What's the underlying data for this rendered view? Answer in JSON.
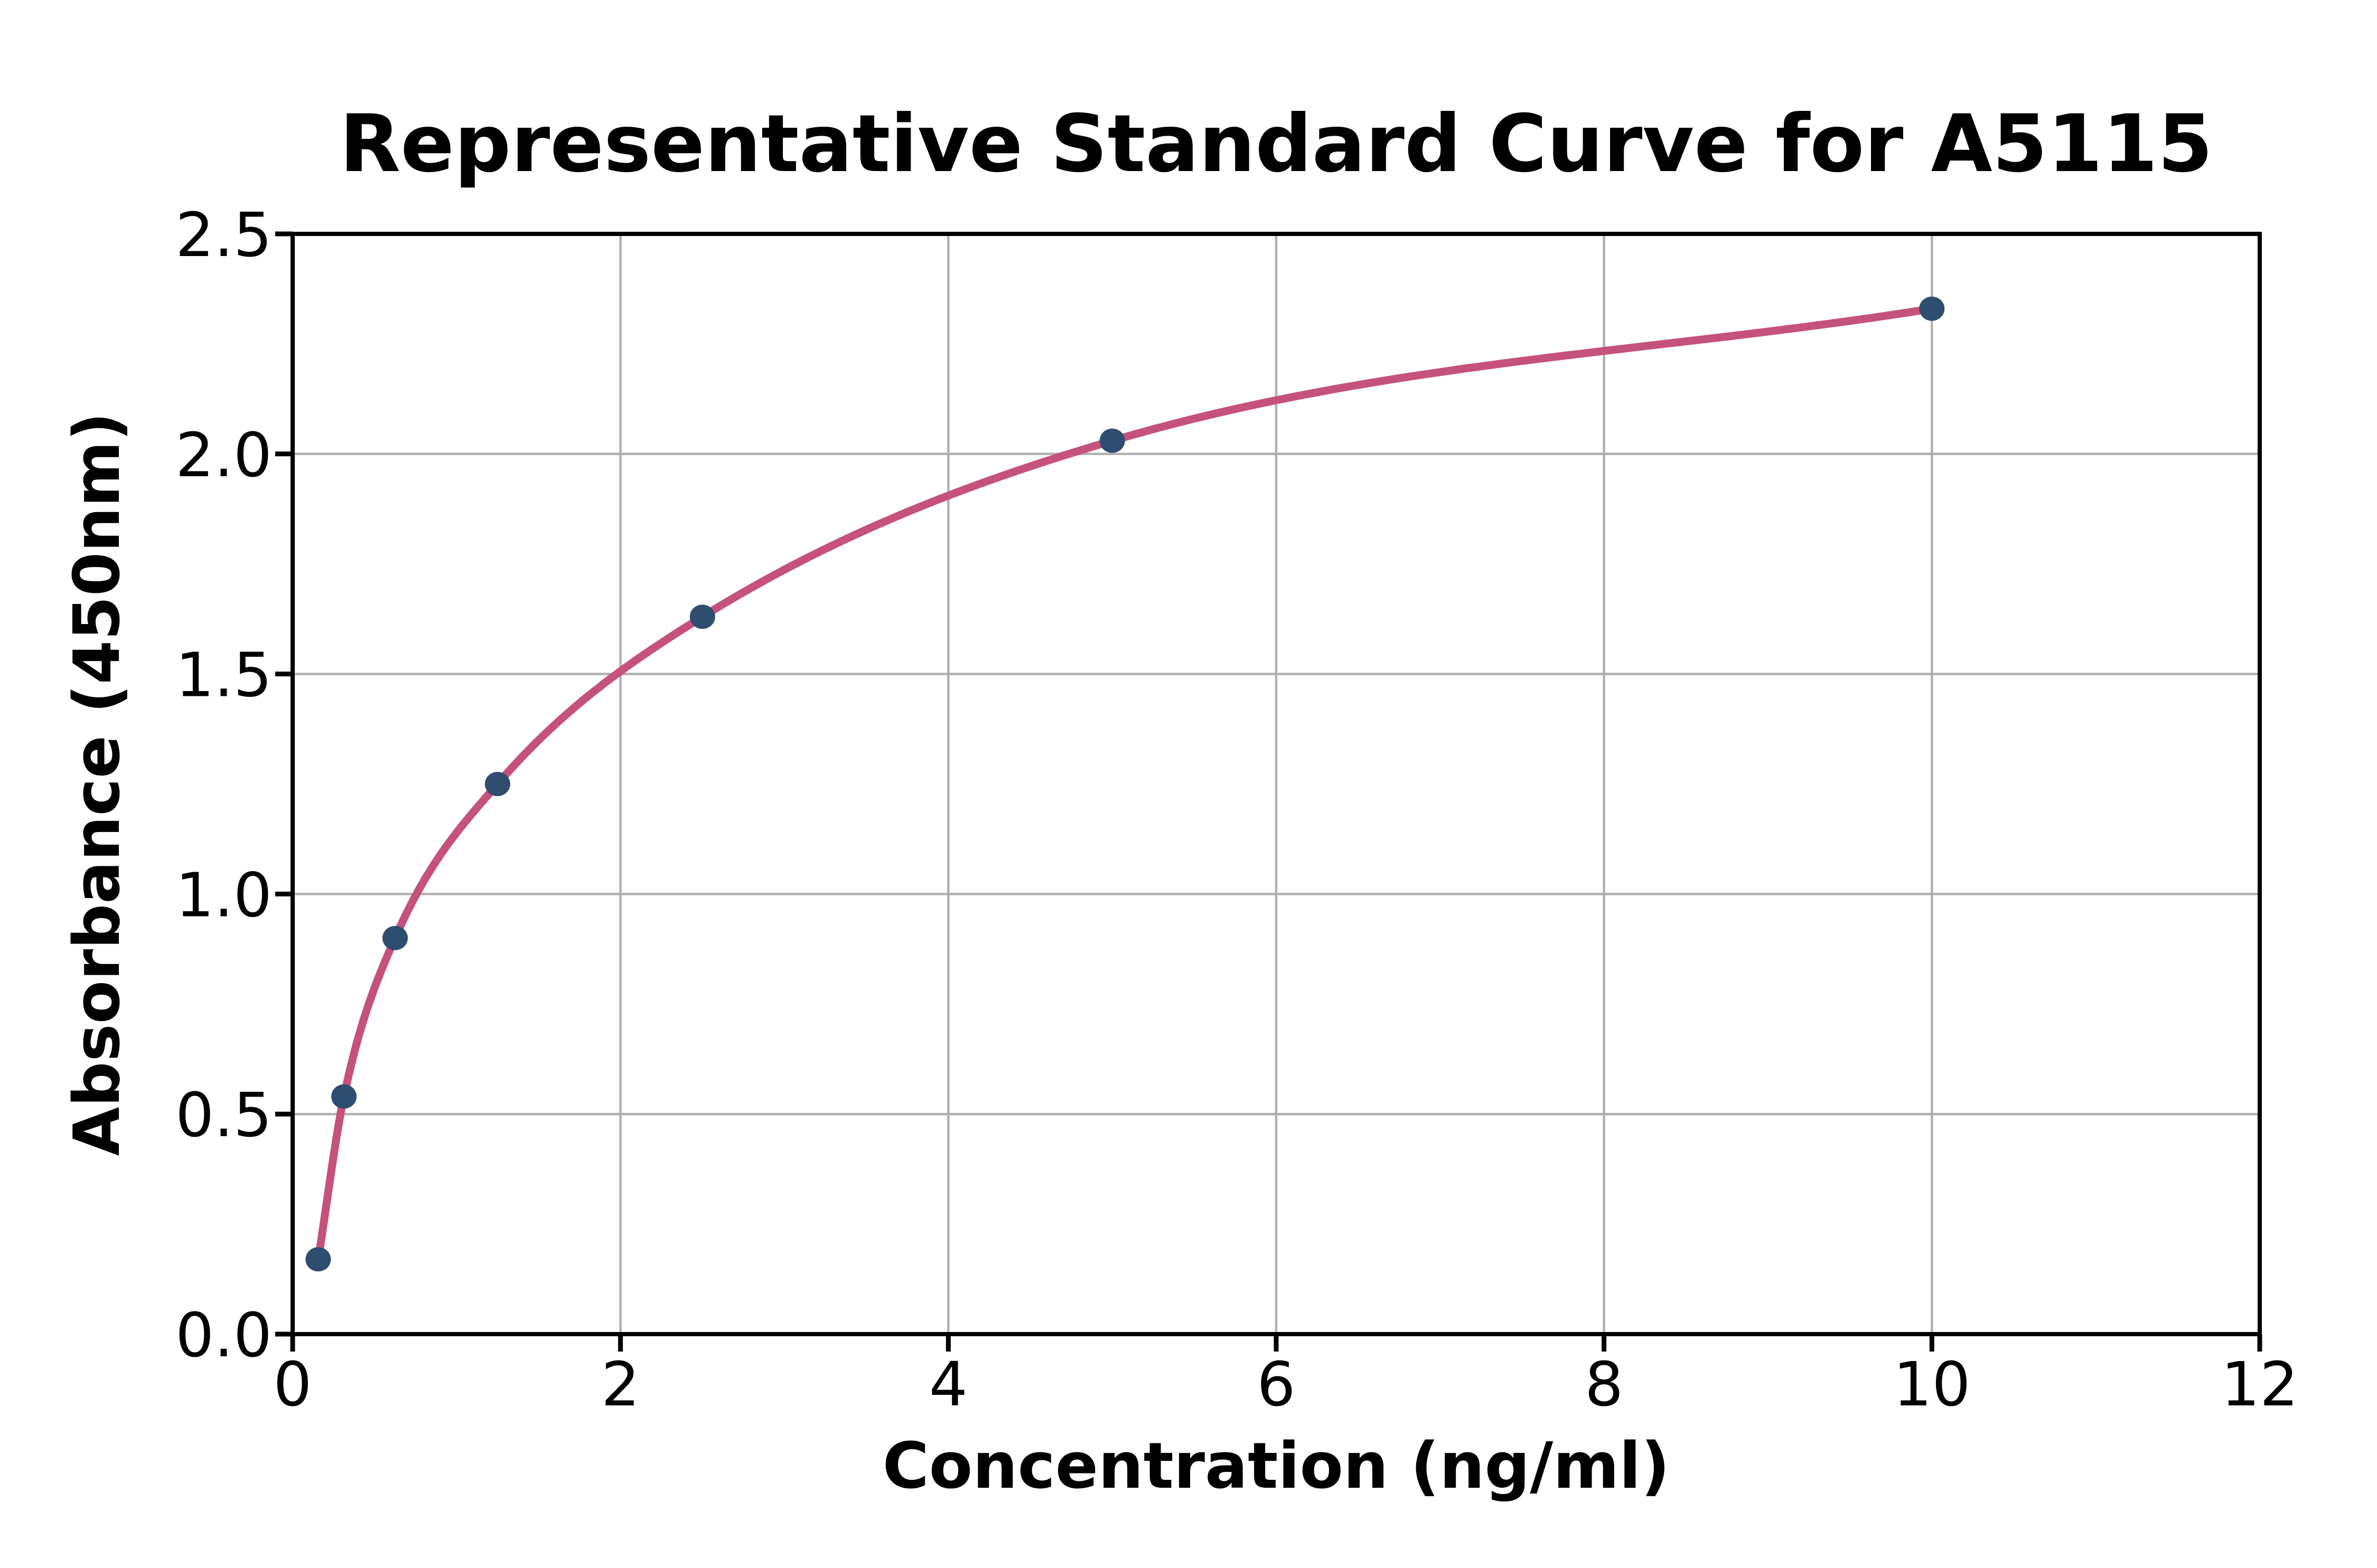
{
  "chart_data": {
    "type": "scatter",
    "title": "Representative Standard Curve for A5115",
    "xlabel": "Concentration (ng/ml)",
    "ylabel": "Absorbance (450nm)",
    "series": [
      {
        "name": "standard-points",
        "x": [
          0.156,
          0.313,
          0.625,
          1.25,
          2.5,
          5,
          10
        ],
        "y": [
          0.17,
          0.54,
          0.9,
          1.25,
          1.63,
          2.03,
          2.33
        ],
        "marker": "circle"
      }
    ],
    "fit_line": true,
    "xlim": [
      0,
      12
    ],
    "ylim": [
      0,
      2.5
    ],
    "x_tick_labels": [
      "0",
      "2",
      "4",
      "6",
      "8",
      "10",
      "12"
    ],
    "y_tick_labels": [
      "0.0",
      "0.5",
      "1.0",
      "1.5",
      "2.0",
      "2.5"
    ],
    "grid": "on",
    "legend": "none",
    "colors": {
      "fit_line": "#c5527c",
      "marker": "#2f4d6e",
      "grid": "#b0b0b0",
      "axes": "#000000",
      "text": "#000000",
      "background": "#ffffff"
    }
  }
}
